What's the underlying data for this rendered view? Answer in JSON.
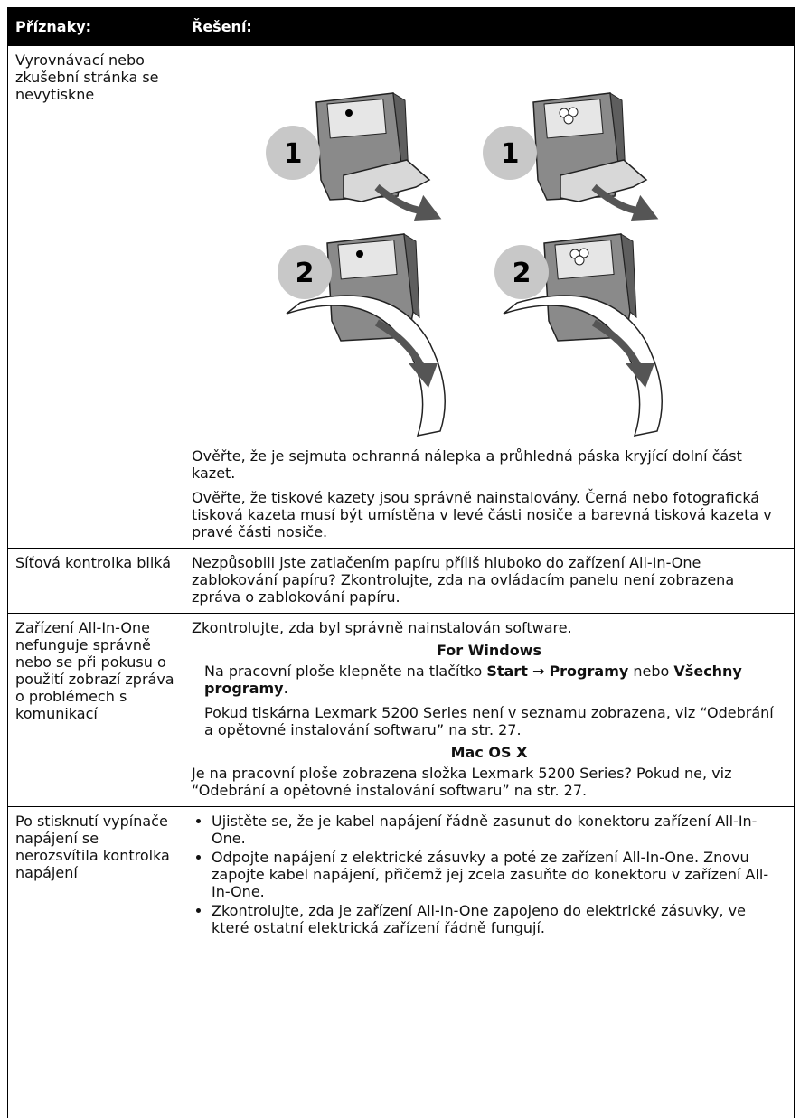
{
  "header": {
    "symptoms": "Příznaky:",
    "solution": "Řešení:"
  },
  "rows": [
    {
      "symptom": "Vyrovnávací nebo zkušební stránka se nevytiskne",
      "illustration_labels": [
        "1",
        "1",
        "2",
        "2"
      ],
      "paragraphs": [
        "Ověřte, že je sejmuta ochranná nálepka a průhledná páska kryjící dolní část kazet.",
        "Ověřte, že tiskové kazety jsou správně nainstalovány. Černá nebo fotografická tisková kazeta musí být umístěna v levé části nosiče a barevná tisková kazeta v pravé části nosiče."
      ]
    },
    {
      "symptom": "Síťová kontrolka bliká",
      "paragraphs": [
        "Nezpůsobili jste zatlačením papíru příliš hluboko do zařízení All-In-One zablokování papíru? Zkontrolujte, zda na ovládacím panelu není zobrazena zpráva o zablokování papíru."
      ]
    },
    {
      "symptom": "Zařízení All-In-One nefunguje správně nebo se při pokusu o použití zobrazí zpráva o problémech s komunikací",
      "intro": "Zkontrolujte, zda byl správně nainstalován software.",
      "windows": {
        "heading": "For Windows",
        "step": [
          "Na pracovní ploše klepněte na tlačítko ",
          "Start",
          "→",
          "Programy",
          " nebo ",
          "Všechny programy",
          "."
        ],
        "note": "Pokud tiskárna Lexmark 5200 Series není v seznamu zobrazena, viz “Odebrání a opětovné instalování softwaru” na str. 27."
      },
      "mac": {
        "heading": "Mac OS X",
        "note": "Je na pracovní ploše zobrazena složka Lexmark 5200 Series? Pokud ne, viz “Odebrání a opětovné instalování softwaru” na str. 27."
      }
    },
    {
      "symptom": "Po stisknutí vypínače napájení se nerozsvítila kontrolka napájení",
      "bullets": [
        "Ujistěte se, že je kabel napájení řádně zasunut do konektoru zařízení All-In-One.",
        "Odpojte napájení z elektrické zásuvky a poté ze zařízení All-In-One. Znovu zapojte kabel napájení, přičemž jej zcela zasuňte do konektoru v zařízení All-In-One.",
        "Zkontrolujte, zda je zařízení All-In-One zapojeno do elektrické zásuvky, ve které ostatní elektrická zařízení řádně fungují."
      ]
    }
  ]
}
